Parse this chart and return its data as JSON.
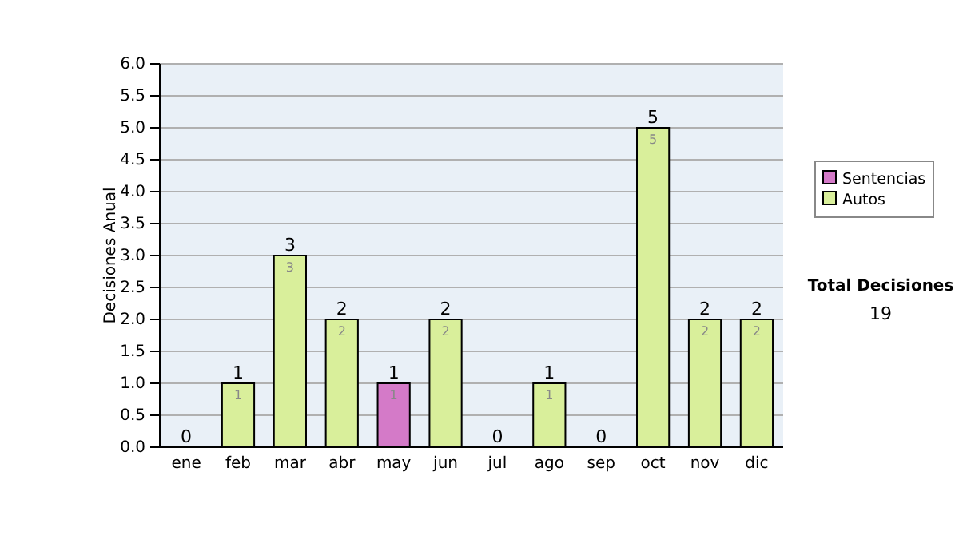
{
  "chart_data": {
    "type": "bar",
    "stacked": true,
    "ylabel": "Decisiones Anual",
    "categories": [
      "ene",
      "feb",
      "mar",
      "abr",
      "may",
      "jun",
      "jul",
      "ago",
      "sep",
      "oct",
      "nov",
      "dic"
    ],
    "series": [
      {
        "name": "Sentencias",
        "color": "#d47ac8",
        "values": [
          0,
          0,
          0,
          0,
          1,
          0,
          0,
          0,
          0,
          0,
          0,
          0
        ],
        "value_labels": [
          null,
          null,
          null,
          null,
          "1",
          null,
          null,
          null,
          null,
          null,
          null,
          null
        ]
      },
      {
        "name": "Autos",
        "color": "#d9ef9b",
        "values": [
          0,
          1,
          3,
          2,
          0,
          2,
          0,
          1,
          0,
          5,
          2,
          2
        ],
        "value_labels": [
          null,
          "1",
          "3",
          "2",
          null,
          "2",
          null,
          "1",
          null,
          "5",
          "2",
          "2"
        ]
      }
    ],
    "totals": [
      "0",
      "1",
      "3",
      "2",
      "1",
      "2",
      "0",
      "1",
      "0",
      "5",
      "2",
      "2"
    ],
    "ylim": [
      0,
      6
    ],
    "yticks": [
      {
        "value": 0,
        "label": "0.0"
      },
      {
        "value": 0.5,
        "label": "0.5"
      },
      {
        "value": 1,
        "label": "1.0"
      },
      {
        "value": 1.5,
        "label": "1.5"
      },
      {
        "value": 2,
        "label": "2.0"
      },
      {
        "value": 2.5,
        "label": "2.5"
      },
      {
        "value": 3,
        "label": "3.0"
      },
      {
        "value": 3.5,
        "label": "3.5"
      },
      {
        "value": 4,
        "label": "4.0"
      },
      {
        "value": 4.5,
        "label": "4.5"
      },
      {
        "value": 5,
        "label": "5.0"
      },
      {
        "value": 5.5,
        "label": "5.5"
      },
      {
        "value": 6,
        "label": "6.0"
      }
    ],
    "grid": "y",
    "legend": "right",
    "annotations": [
      "Total Decisiones",
      "19"
    ]
  }
}
